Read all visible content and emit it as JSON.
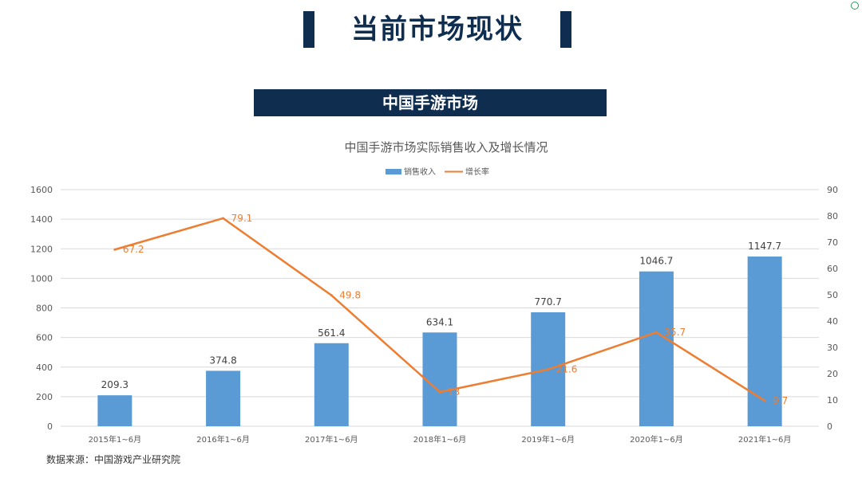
{
  "header": {
    "title": "当前市场现状"
  },
  "section": {
    "banner": "中国手游市场"
  },
  "footer": {
    "source": "数据来源：中国游戏产业研究院"
  },
  "chart_data": {
    "type": "bar",
    "title": "中国手游市场实际销售收入及增长情况",
    "categories": [
      "2015年1~6月",
      "2016年1~6月",
      "2017年1~6月",
      "2018年1~6月",
      "2019年1~6月",
      "2020年1~6月",
      "2021年1~6月"
    ],
    "series": [
      {
        "name": "销售收入",
        "type": "bar",
        "axis": "left",
        "color": "#5b9bd5",
        "values": [
          209.3,
          374.8,
          561.4,
          634.1,
          770.7,
          1046.7,
          1147.7
        ],
        "labels": [
          "209.3",
          "374.8",
          "561.4",
          "634.1",
          "770.7",
          "1046.7",
          "1147.7"
        ]
      },
      {
        "name": "增长率",
        "type": "line",
        "axis": "right",
        "color": "#ed7d31",
        "values": [
          67.2,
          79.1,
          49.8,
          13,
          21.6,
          35.7,
          9.7
        ],
        "labels": [
          "67.2",
          "79.1",
          "49.8",
          "13",
          "21.6",
          "35.7",
          "9.7"
        ]
      }
    ],
    "ylim_left": [
      0,
      1600
    ],
    "yticks_left": [
      "0",
      "200",
      "400",
      "600",
      "800",
      "1000",
      "1200",
      "1400",
      "1600"
    ],
    "ylim_right": [
      0,
      90
    ],
    "yticks_right": [
      "0",
      "10",
      "20",
      "30",
      "40",
      "50",
      "60",
      "70",
      "80",
      "90"
    ],
    "grid": true,
    "legend": "top-center"
  }
}
